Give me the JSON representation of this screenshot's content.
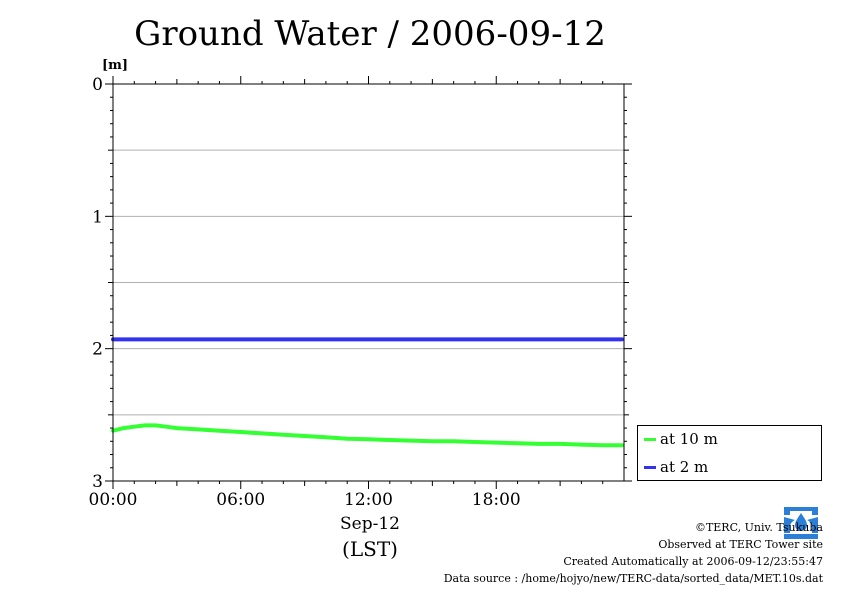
{
  "title": "Ground Water / 2006-09-12",
  "axis": {
    "y_unit": "[m]",
    "y_ticks": [
      "0",
      "1",
      "2",
      "3"
    ],
    "x_ticks": [
      "00:00",
      "06:00",
      "12:00",
      "18:00"
    ],
    "date_label": "Sep-12",
    "tz_label": "(LST)"
  },
  "legend": [
    {
      "label": "at 10 m",
      "color": "#33ff33"
    },
    {
      "label": "at 2 m",
      "color": "#3333ee"
    }
  ],
  "credits": {
    "copyright": "©TERC, Univ. Tsukuba",
    "observed": "Observed at TERC Tower site",
    "created": "Created Automatically at 2006-09-12/23:55:47",
    "source": "Data source : /home/hojyo/new/TERC-data/sorted_data/MET.10s.dat"
  },
  "chart_data": {
    "type": "line",
    "title": "Ground Water / 2006-09-12",
    "xlabel": "Sep-12 (LST)",
    "ylabel": "[m]",
    "xlim": [
      0,
      24
    ],
    "ylim": [
      0,
      3
    ],
    "y_inverted": true,
    "grid": {
      "horizontal": true,
      "vertical": false
    },
    "legend_position": "right",
    "series": [
      {
        "name": "at 10 m",
        "color": "#33ff33",
        "x": [
          0,
          0.5,
          1,
          1.5,
          2,
          2.5,
          3,
          4,
          5,
          6,
          7,
          8,
          9,
          10,
          11,
          12,
          13,
          14,
          15,
          16,
          17,
          18,
          19,
          20,
          21,
          22,
          23,
          23.9
        ],
        "y": [
          2.62,
          2.6,
          2.59,
          2.58,
          2.58,
          2.59,
          2.6,
          2.61,
          2.62,
          2.63,
          2.64,
          2.65,
          2.66,
          2.67,
          2.68,
          2.685,
          2.69,
          2.695,
          2.7,
          2.7,
          2.705,
          2.71,
          2.715,
          2.72,
          2.72,
          2.725,
          2.73,
          2.73
        ]
      },
      {
        "name": "at 2 m",
        "color": "#3333ee",
        "x": [
          0,
          4,
          8,
          12,
          16,
          20,
          23.9
        ],
        "y": [
          1.93,
          1.93,
          1.93,
          1.93,
          1.93,
          1.93,
          1.93
        ]
      }
    ]
  }
}
